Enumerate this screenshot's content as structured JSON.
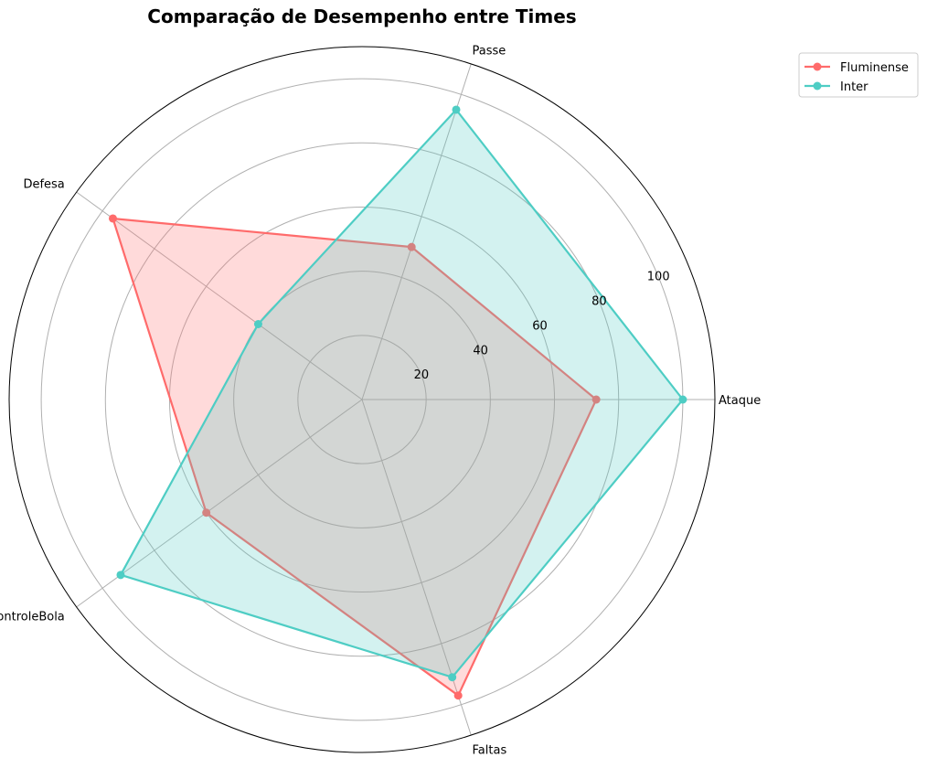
{
  "chart_data": {
    "type": "radar",
    "title": "Comparação de Desempenho entre Times",
    "categories": [
      "Ataque",
      "Passe",
      "Defesa",
      "ControleBola",
      "Faltas"
    ],
    "r_ticks": [
      20,
      40,
      60,
      80,
      100
    ],
    "rlim": [
      0,
      110
    ],
    "grid": true,
    "legend_position": "top-right",
    "series": [
      {
        "name": "Fluminense",
        "color": "#ff6b6b",
        "values": [
          73,
          50,
          96,
          60,
          97
        ]
      },
      {
        "name": "Inter",
        "color": "#4ecdc4",
        "values": [
          100,
          95,
          40,
          93,
          91
        ]
      }
    ]
  }
}
